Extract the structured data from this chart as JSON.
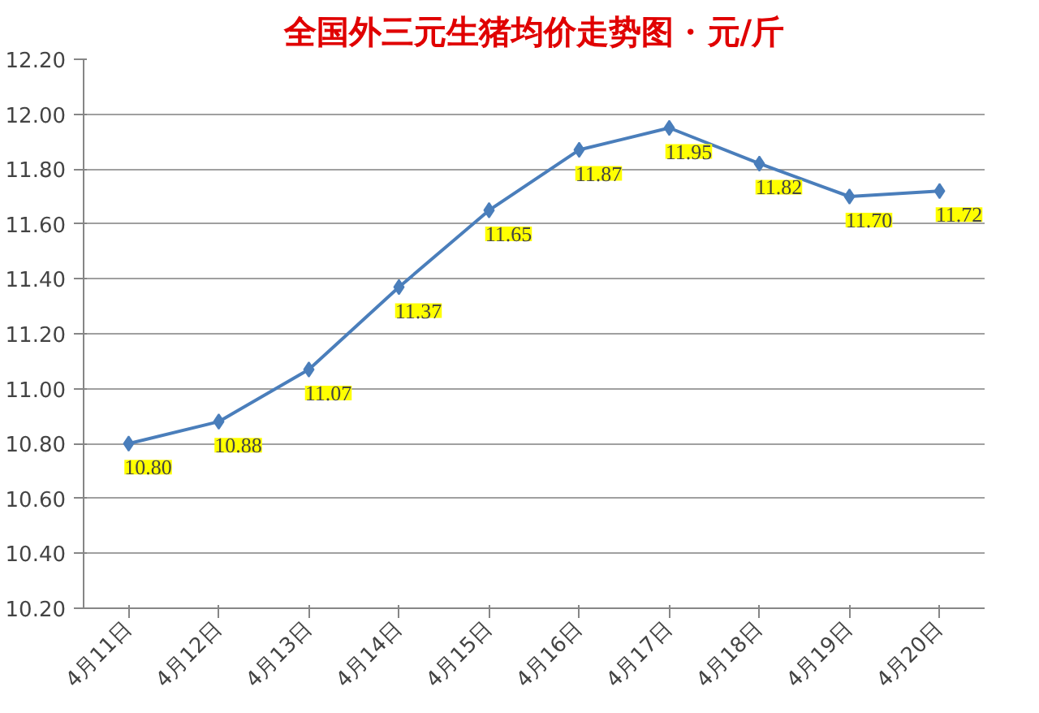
{
  "chart_data": {
    "type": "line",
    "title": "全国外三元生猪均价走势图 · 元/斤",
    "categories": [
      "4月11日",
      "4月12日",
      "4月13日",
      "4月14日",
      "4月15日",
      "4月16日",
      "4月17日",
      "4月18日",
      "4月19日",
      "4月20日"
    ],
    "series": [
      {
        "color": "#4a7ebb",
        "values": [
          10.8,
          10.88,
          11.07,
          11.37,
          11.65,
          11.87,
          11.95,
          11.82,
          11.7,
          11.72
        ],
        "value_labels": [
          "10.80",
          "10.88",
          "11.07",
          "11.37",
          "11.65",
          "11.87",
          "11.95",
          "11.82",
          "11.70",
          "11.72"
        ]
      }
    ],
    "ylim": [
      10.2,
      12.2
    ],
    "yticks": [
      {
        "value": 10.2,
        "label": "10.20"
      },
      {
        "value": 10.4,
        "label": "10.40"
      },
      {
        "value": 10.6,
        "label": "10.60"
      },
      {
        "value": 10.8,
        "label": "10.80"
      },
      {
        "value": 11.0,
        "label": "11.00"
      },
      {
        "value": 11.2,
        "label": "11.20"
      },
      {
        "value": 11.4,
        "label": "11.40"
      },
      {
        "value": 11.6,
        "label": "11.60"
      },
      {
        "value": 11.8,
        "label": "11.80"
      },
      {
        "value": 12.0,
        "label": "12.00"
      },
      {
        "value": 12.2,
        "label": "12.20"
      }
    ],
    "grid": "y",
    "marker": "diamond",
    "line_style": "solid"
  }
}
